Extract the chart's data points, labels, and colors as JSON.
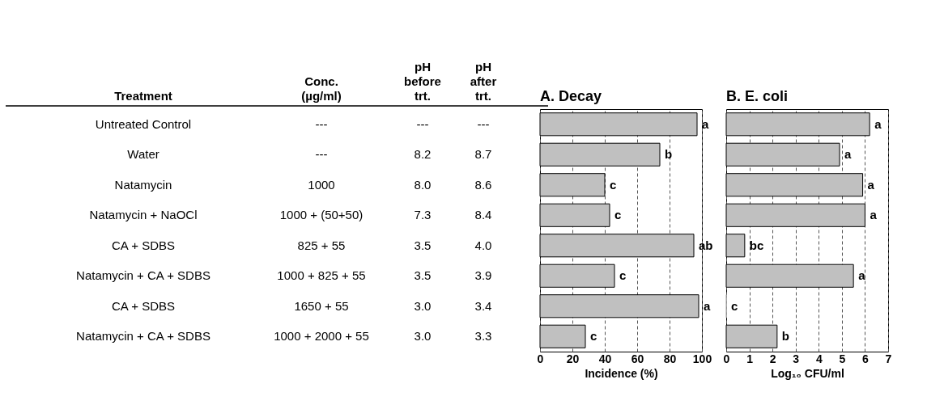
{
  "chart_data": [
    {
      "type": "other",
      "annotations": [
        "Treatment",
        "Conc.\n(µg/ml)",
        "pH\nbefore\ntrt.",
        "pH\nafter\ntrt.",
        "Untreated Control",
        "---",
        "---",
        "---",
        "Water",
        "---",
        "8.2",
        "8.7",
        "Natamycin",
        "1000",
        "8.0",
        "8.6",
        "Natamycin + NaOCl",
        "1000 + (50+50)",
        "7.3",
        "8.4",
        "CA + SDBS",
        "825 + 55",
        "3.5",
        "4.0",
        "Natamycin + CA + SDBS",
        "1000 + 825 + 55",
        "3.5",
        "3.9",
        "CA + SDBS",
        "1650 + 55",
        "3.0",
        "3.4",
        "Natamycin + CA + SDBS",
        "1000 + 2000 + 55",
        "3.0",
        "3.3"
      ]
    },
    {
      "type": "bar",
      "orientation": "horizontal",
      "title": "A. Decay",
      "xlabel": "Incidence (%)",
      "categories": [
        null,
        null,
        null,
        null,
        null,
        null,
        null,
        null
      ],
      "values": [
        97,
        74,
        40,
        43,
        95,
        46,
        98,
        28
      ],
      "value_labels": [
        "a",
        "b",
        "c",
        "c",
        "ab",
        "c",
        "a",
        "c"
      ],
      "color": "#c0c0c0",
      "xlim": [
        0,
        100
      ],
      "xticks": [
        0,
        20,
        40,
        60,
        80,
        100
      ],
      "grid": "x"
    },
    {
      "type": "bar",
      "orientation": "horizontal",
      "title": "B. E. coli",
      "xlabel": "Log₁₀ CFU/ml",
      "categories": [
        null,
        null,
        null,
        null,
        null,
        null,
        null,
        null
      ],
      "values": [
        6.2,
        4.9,
        5.9,
        6.0,
        0.8,
        5.5,
        0,
        2.2
      ],
      "value_labels": [
        "a",
        "a",
        "a",
        "a",
        "bc",
        "a",
        "c",
        "b"
      ],
      "color": "#c0c0c0",
      "xlim": [
        0,
        7
      ],
      "xticks": [
        0,
        1,
        2,
        3,
        4,
        5,
        6,
        7
      ],
      "grid": "x"
    }
  ]
}
